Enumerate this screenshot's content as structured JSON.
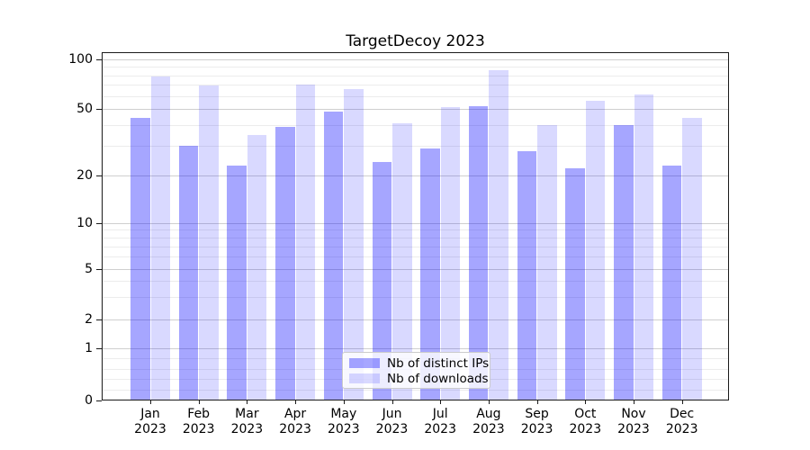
{
  "page": {
    "title": "TargetDecoy 2023"
  },
  "chart_data": {
    "type": "bar",
    "title": "TargetDecoy 2023",
    "categories": [
      {
        "month": "Jan",
        "year": "2023"
      },
      {
        "month": "Feb",
        "year": "2023"
      },
      {
        "month": "Mar",
        "year": "2023"
      },
      {
        "month": "Apr",
        "year": "2023"
      },
      {
        "month": "May",
        "year": "2023"
      },
      {
        "month": "Jun",
        "year": "2023"
      },
      {
        "month": "Jul",
        "year": "2023"
      },
      {
        "month": "Aug",
        "year": "2023"
      },
      {
        "month": "Sep",
        "year": "2023"
      },
      {
        "month": "Oct",
        "year": "2023"
      },
      {
        "month": "Nov",
        "year": "2023"
      },
      {
        "month": "Dec",
        "year": "2023"
      }
    ],
    "series": [
      {
        "name": "Nb of distinct IPs",
        "color": "rgba(0,0,255,0.35)",
        "values": [
          44,
          30,
          23,
          39,
          48,
          24,
          29,
          52,
          28,
          22,
          40,
          23
        ]
      },
      {
        "name": "Nb of downloads",
        "color": "rgba(0,0,255,0.15)",
        "values": [
          79,
          69,
          35,
          70,
          66,
          41,
          51,
          86,
          40,
          56,
          61,
          44
        ]
      }
    ],
    "y_axis": {
      "scale": "symlog",
      "tick_labels": [
        100,
        50,
        20,
        10,
        5,
        2,
        1,
        0
      ],
      "minor_gridlines": [
        90,
        80,
        70,
        60,
        40,
        30,
        9,
        8,
        7,
        6,
        4,
        3,
        0.8,
        0.6,
        0.4,
        0.2
      ]
    },
    "x_axis": {
      "label_lines": 2
    },
    "legend": {
      "position": "lower center",
      "items": [
        "Nb of distinct IPs",
        "Nb of downloads"
      ]
    },
    "grid": true,
    "colors": {
      "bar_distinct_ips": "rgba(0,0,255,0.35)",
      "bar_downloads": "rgba(0,0,255,0.15)",
      "major_grid": "#cfcfcf",
      "minor_grid": "#ececec",
      "spine": "#1a1a1a",
      "background": "#ffffff"
    }
  }
}
